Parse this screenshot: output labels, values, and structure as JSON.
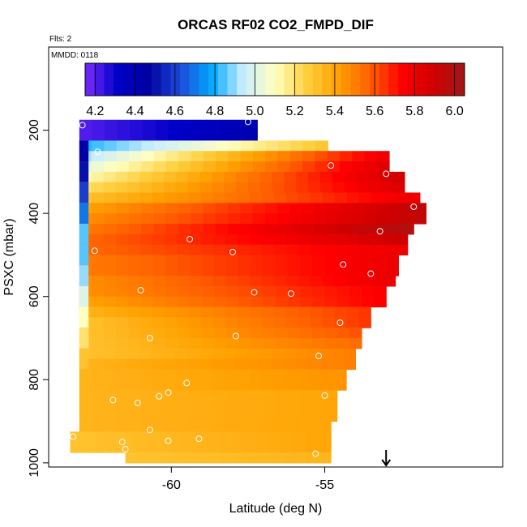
{
  "chart_data": {
    "type": "heatmap",
    "title": "ORCAS RF02 CO2_FMPD_DIF",
    "flights_note": "Flts: 2",
    "date_note": "MMDD: 0118",
    "xlabel": "Latitude (deg N)",
    "ylabel": "PSXC (mbar)",
    "xlim": [
      -64.0,
      -49.2
    ],
    "ylim": [
      1010,
      0
    ],
    "x_ticks": [
      -60,
      -55
    ],
    "x_tick_labels": [
      "-60",
      "-55"
    ],
    "y_ticks": [
      200,
      400,
      600,
      800,
      1000
    ],
    "y_tick_labels": [
      "200",
      "400",
      "600",
      "800",
      "1000"
    ],
    "colorbar": {
      "range": [
        4.15,
        6.05
      ],
      "ticks": [
        4.2,
        4.4,
        4.6,
        4.8,
        5.0,
        5.2,
        5.4,
        5.6,
        5.8,
        6.0
      ],
      "tick_labels": [
        "4.2",
        "4.4",
        "4.6",
        "4.8",
        "5.0",
        "5.2",
        "5.4",
        "5.6",
        "5.8",
        "6.0"
      ],
      "stops": [
        "#7b2cff",
        "#0000c8",
        "#0000a0",
        "#1e4ad8",
        "#00a8ff",
        "#c8eeff",
        "#ffffc0",
        "#ffd040",
        "#ffa000",
        "#ff6000",
        "#ff0000",
        "#d00000",
        "#a01818"
      ]
    },
    "layers": [
      {
        "p_top": 175,
        "p_bot": 225,
        "x_start": -63.0,
        "x_end": -57.2,
        "v_start": 4.2,
        "v_end": 4.4
      },
      {
        "p_top": 225,
        "p_bot": 250,
        "x_start": -63.0,
        "x_end": -54.9,
        "v_start": 4.8,
        "v_end": 5.3
      },
      {
        "p_top": 250,
        "p_bot": 275,
        "x_start": -63.0,
        "x_end": -52.9,
        "v_start": 4.9,
        "v_end": 5.8
      },
      {
        "p_top": 275,
        "p_bot": 300,
        "x_start": -63.0,
        "x_end": -52.9,
        "v_start": 5.0,
        "v_end": 5.85
      },
      {
        "p_top": 300,
        "p_bot": 325,
        "x_start": -63.0,
        "x_end": -52.4,
        "v_start": 5.1,
        "v_end": 5.9
      },
      {
        "p_top": 325,
        "p_bot": 350,
        "x_start": -63.0,
        "x_end": -52.4,
        "v_start": 5.2,
        "v_end": 5.85
      },
      {
        "p_top": 350,
        "p_bot": 375,
        "x_start": -63.0,
        "x_end": -51.9,
        "v_start": 5.3,
        "v_end": 5.8
      },
      {
        "p_top": 375,
        "p_bot": 400,
        "x_start": -63.0,
        "x_end": -51.7,
        "v_start": 5.4,
        "v_end": 5.95
      },
      {
        "p_top": 400,
        "p_bot": 425,
        "x_start": -63.0,
        "x_end": -51.7,
        "v_start": 5.45,
        "v_end": 5.95
      },
      {
        "p_top": 425,
        "p_bot": 450,
        "x_start": -63.0,
        "x_end": -52.1,
        "v_start": 5.5,
        "v_end": 6.0
      },
      {
        "p_top": 450,
        "p_bot": 475,
        "x_start": -63.0,
        "x_end": -52.3,
        "v_start": 5.55,
        "v_end": 5.9
      },
      {
        "p_top": 475,
        "p_bot": 500,
        "x_start": -63.0,
        "x_end": -52.3,
        "v_start": 5.55,
        "v_end": 5.8
      },
      {
        "p_top": 500,
        "p_bot": 525,
        "x_start": -63.0,
        "x_end": -52.6,
        "v_start": 5.5,
        "v_end": 5.8
      },
      {
        "p_top": 525,
        "p_bot": 550,
        "x_start": -63.0,
        "x_end": -52.6,
        "v_start": 5.5,
        "v_end": 5.8
      },
      {
        "p_top": 550,
        "p_bot": 575,
        "x_start": -63.0,
        "x_end": -52.7,
        "v_start": 5.45,
        "v_end": 5.8
      },
      {
        "p_top": 575,
        "p_bot": 600,
        "x_start": -63.0,
        "x_end": -53.0,
        "v_start": 5.45,
        "v_end": 5.75
      },
      {
        "p_top": 600,
        "p_bot": 625,
        "x_start": -63.0,
        "x_end": -53.0,
        "v_start": 5.4,
        "v_end": 5.75
      },
      {
        "p_top": 625,
        "p_bot": 650,
        "x_start": -63.0,
        "x_end": -53.5,
        "v_start": 5.35,
        "v_end": 5.65
      },
      {
        "p_top": 650,
        "p_bot": 675,
        "x_start": -63.0,
        "x_end": -53.5,
        "v_start": 5.3,
        "v_end": 5.65
      },
      {
        "p_top": 675,
        "p_bot": 700,
        "x_start": -63.0,
        "x_end": -53.8,
        "v_start": 5.3,
        "v_end": 5.6
      },
      {
        "p_top": 700,
        "p_bot": 725,
        "x_start": -63.0,
        "x_end": -53.8,
        "v_start": 5.3,
        "v_end": 5.55
      },
      {
        "p_top": 725,
        "p_bot": 750,
        "x_start": -63.0,
        "x_end": -54.0,
        "v_start": 5.3,
        "v_end": 5.5
      },
      {
        "p_top": 750,
        "p_bot": 775,
        "x_start": -63.0,
        "x_end": -54.0,
        "v_start": 5.35,
        "v_end": 5.5
      },
      {
        "p_top": 775,
        "p_bot": 800,
        "x_start": -63.0,
        "x_end": -54.3,
        "v_start": 5.35,
        "v_end": 5.45
      },
      {
        "p_top": 800,
        "p_bot": 825,
        "x_start": -63.0,
        "x_end": -54.3,
        "v_start": 5.35,
        "v_end": 5.45
      },
      {
        "p_top": 825,
        "p_bot": 850,
        "x_start": -63.0,
        "x_end": -54.6,
        "v_start": 5.35,
        "v_end": 5.4
      },
      {
        "p_top": 850,
        "p_bot": 875,
        "x_start": -63.0,
        "x_end": -54.6,
        "v_start": 5.35,
        "v_end": 5.4
      },
      {
        "p_top": 875,
        "p_bot": 900,
        "x_start": -63.0,
        "x_end": -54.6,
        "v_start": 5.35,
        "v_end": 5.4
      },
      {
        "p_top": 900,
        "p_bot": 925,
        "x_start": -63.0,
        "x_end": -54.8,
        "v_start": 5.35,
        "v_end": 5.4
      },
      {
        "p_top": 925,
        "p_bot": 950,
        "x_start": -63.3,
        "x_end": -54.8,
        "v_start": 5.3,
        "v_end": 5.4
      },
      {
        "p_top": 950,
        "p_bot": 975,
        "x_start": -63.3,
        "x_end": -54.8,
        "v_start": 5.3,
        "v_end": 5.4
      },
      {
        "p_top": 975,
        "p_bot": 1000,
        "x_start": -61.5,
        "x_end": -54.8,
        "v_start": 5.3,
        "v_end": 5.35
      }
    ],
    "edge_cells": [
      {
        "p_top": 225,
        "p_bot": 275,
        "x_start": -63.0,
        "x_end": -62.7,
        "value": 4.45
      },
      {
        "p_top": 275,
        "p_bot": 325,
        "x_start": -63.0,
        "x_end": -62.7,
        "value": 4.5
      },
      {
        "p_top": 325,
        "p_bot": 375,
        "x_start": -63.0,
        "x_end": -62.7,
        "value": 4.6
      },
      {
        "p_top": 375,
        "p_bot": 425,
        "x_start": -63.0,
        "x_end": -62.7,
        "value": 4.7
      },
      {
        "p_top": 425,
        "p_bot": 475,
        "x_start": -63.0,
        "x_end": -62.7,
        "value": 4.85
      },
      {
        "p_top": 475,
        "p_bot": 525,
        "x_start": -63.0,
        "x_end": -62.7,
        "value": 4.85
      },
      {
        "p_top": 525,
        "p_bot": 575,
        "x_start": -63.0,
        "x_end": -62.7,
        "value": 4.9
      },
      {
        "p_top": 575,
        "p_bot": 625,
        "x_start": -63.0,
        "x_end": -62.7,
        "value": 5.0
      },
      {
        "p_top": 625,
        "p_bot": 675,
        "x_start": -63.0,
        "x_end": -62.7,
        "value": 5.1
      },
      {
        "p_top": 675,
        "p_bot": 725,
        "x_start": -63.0,
        "x_end": -62.7,
        "value": 5.2
      },
      {
        "p_top": 725,
        "p_bot": 775,
        "x_start": -63.0,
        "x_end": -62.7,
        "value": 5.3
      }
    ],
    "flight_points": [
      {
        "lat": -62.9,
        "p": 188
      },
      {
        "lat": -62.4,
        "p": 252
      },
      {
        "lat": -62.5,
        "p": 490
      },
      {
        "lat": -61.0,
        "p": 585
      },
      {
        "lat": -60.7,
        "p": 700
      },
      {
        "lat": -59.4,
        "p": 462
      },
      {
        "lat": -57.5,
        "p": 180
      },
      {
        "lat": -57.9,
        "p": 695
      },
      {
        "lat": -58.0,
        "p": 493
      },
      {
        "lat": -57.3,
        "p": 590
      },
      {
        "lat": -56.1,
        "p": 593
      },
      {
        "lat": -55.2,
        "p": 743
      },
      {
        "lat": -54.8,
        "p": 285
      },
      {
        "lat": -53.0,
        "p": 305
      },
      {
        "lat": -52.1,
        "p": 384
      },
      {
        "lat": -53.2,
        "p": 443
      },
      {
        "lat": -54.4,
        "p": 523
      },
      {
        "lat": -53.5,
        "p": 545
      },
      {
        "lat": -54.5,
        "p": 663
      },
      {
        "lat": -55.0,
        "p": 838
      },
      {
        "lat": -55.3,
        "p": 978
      },
      {
        "lat": -61.9,
        "p": 849
      },
      {
        "lat": -61.1,
        "p": 856
      },
      {
        "lat": -60.4,
        "p": 840
      },
      {
        "lat": -60.1,
        "p": 831
      },
      {
        "lat": -59.5,
        "p": 808
      },
      {
        "lat": -60.7,
        "p": 921
      },
      {
        "lat": -60.1,
        "p": 947
      },
      {
        "lat": -59.1,
        "p": 942
      },
      {
        "lat": -61.6,
        "p": 950
      },
      {
        "lat": -61.5,
        "p": 967
      },
      {
        "lat": -63.2,
        "p": 937
      }
    ],
    "arrow_marker_lat": -53.0
  }
}
